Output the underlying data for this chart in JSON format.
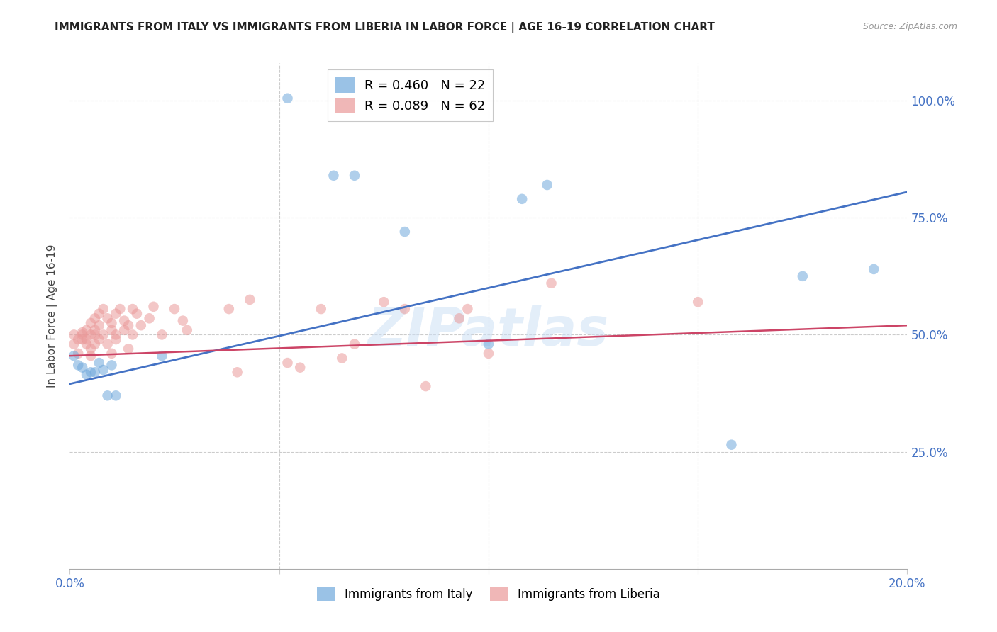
{
  "title": "IMMIGRANTS FROM ITALY VS IMMIGRANTS FROM LIBERIA IN LABOR FORCE | AGE 16-19 CORRELATION CHART",
  "source": "Source: ZipAtlas.com",
  "ylabel": "In Labor Force | Age 16-19",
  "xlim": [
    0.0,
    0.2
  ],
  "ylim": [
    0.0,
    1.08
  ],
  "yticks": [
    0.25,
    0.5,
    0.75,
    1.0
  ],
  "ytick_labels": [
    "25.0%",
    "50.0%",
    "75.0%",
    "100.0%"
  ],
  "xticks": [
    0.0,
    0.05,
    0.1,
    0.15,
    0.2
  ],
  "xtick_labels": [
    "0.0%",
    "",
    "",
    "",
    "20.0%"
  ],
  "watermark": "ZIPatlas",
  "legend_italy_r": "R = 0.460",
  "legend_italy_n": "N = 22",
  "legend_liberia_r": "R = 0.089",
  "legend_liberia_n": "N = 62",
  "italy_color": "#6fa8dc",
  "liberia_color": "#ea9999",
  "italy_line_color": "#4472c4",
  "liberia_line_color": "#cc4466",
  "tick_color": "#4472c4",
  "background_color": "#ffffff",
  "italy_x": [
    0.001,
    0.002,
    0.003,
    0.004,
    0.005,
    0.006,
    0.007,
    0.008,
    0.009,
    0.01,
    0.011,
    0.022,
    0.052,
    0.063,
    0.068,
    0.08,
    0.1,
    0.108,
    0.114,
    0.158,
    0.175,
    0.192
  ],
  "italy_y": [
    0.455,
    0.435,
    0.43,
    0.415,
    0.42,
    0.42,
    0.44,
    0.425,
    0.37,
    0.435,
    0.37,
    0.455,
    1.005,
    0.84,
    0.84,
    0.72,
    0.48,
    0.79,
    0.82,
    0.265,
    0.625,
    0.64
  ],
  "liberia_x": [
    0.001,
    0.001,
    0.002,
    0.002,
    0.003,
    0.003,
    0.003,
    0.004,
    0.004,
    0.004,
    0.005,
    0.005,
    0.005,
    0.005,
    0.006,
    0.006,
    0.006,
    0.006,
    0.007,
    0.007,
    0.007,
    0.008,
    0.008,
    0.009,
    0.009,
    0.01,
    0.01,
    0.01,
    0.011,
    0.011,
    0.011,
    0.012,
    0.013,
    0.013,
    0.014,
    0.014,
    0.015,
    0.015,
    0.016,
    0.017,
    0.019,
    0.02,
    0.022,
    0.025,
    0.027,
    0.028,
    0.038,
    0.04,
    0.043,
    0.052,
    0.055,
    0.06,
    0.065,
    0.068,
    0.075,
    0.08,
    0.085,
    0.093,
    0.095,
    0.1,
    0.115,
    0.15
  ],
  "liberia_y": [
    0.48,
    0.5,
    0.46,
    0.49,
    0.505,
    0.49,
    0.5,
    0.51,
    0.49,
    0.48,
    0.525,
    0.47,
    0.5,
    0.455,
    0.535,
    0.51,
    0.5,
    0.48,
    0.545,
    0.52,
    0.49,
    0.555,
    0.5,
    0.535,
    0.48,
    0.525,
    0.51,
    0.46,
    0.545,
    0.5,
    0.49,
    0.555,
    0.53,
    0.51,
    0.52,
    0.47,
    0.555,
    0.5,
    0.545,
    0.52,
    0.535,
    0.56,
    0.5,
    0.555,
    0.53,
    0.51,
    0.555,
    0.42,
    0.575,
    0.44,
    0.43,
    0.555,
    0.45,
    0.48,
    0.57,
    0.555,
    0.39,
    0.535,
    0.555,
    0.46,
    0.61,
    0.57
  ],
  "italy_line_x0": 0.0,
  "italy_line_y0": 0.395,
  "italy_line_x1": 0.2,
  "italy_line_y1": 0.805,
  "liberia_line_x0": 0.0,
  "liberia_line_y0": 0.455,
  "liberia_line_x1": 0.2,
  "liberia_line_y1": 0.52
}
